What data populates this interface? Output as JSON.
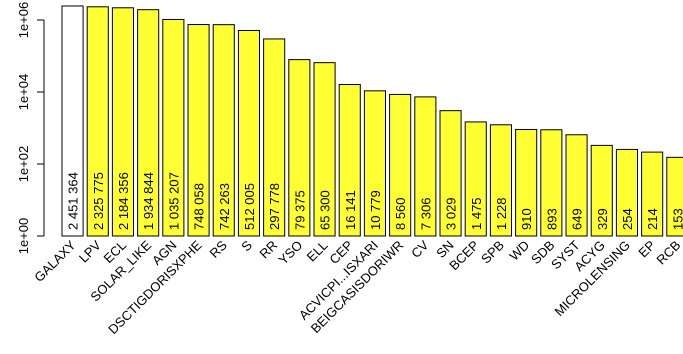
{
  "chart_data": {
    "type": "bar",
    "y_scale": "log",
    "ylim": [
      1,
      2451364
    ],
    "y_ticks": [
      {
        "value": 1,
        "label": "1e+00"
      },
      {
        "value": 100,
        "label": "1e+02"
      },
      {
        "value": 10000,
        "label": "1e+04"
      },
      {
        "value": 1000000,
        "label": "1e+06"
      }
    ],
    "colors": {
      "first_bar": "#ffffff",
      "bars": "#ffff33",
      "stroke": "#000000"
    },
    "categories": [
      "GALAXY",
      "LPV",
      "ECL",
      "SOLAR_LIKE",
      "AGN",
      "DSCT|GDOR|SXPHE",
      "RS",
      "S",
      "RR",
      "YSO",
      "ELL",
      "CEP",
      "ACV|CP|...|SXARI",
      "BE|GCAS|SDOR|WR",
      "CV",
      "SN",
      "BCEP",
      "SPB",
      "WD",
      "SDB",
      "SYST",
      "ACYG",
      "MICROLENSING",
      "EP",
      "RCB"
    ],
    "values": [
      2451364,
      2325775,
      2184356,
      1934844,
      1035207,
      748058,
      742263,
      512005,
      297778,
      79375,
      65300,
      16141,
      10779,
      8560,
      7306,
      3029,
      1475,
      1228,
      910,
      893,
      649,
      329,
      254,
      214,
      153
    ],
    "value_labels": [
      "2 451 364",
      "2 325 775",
      "2 184 356",
      "1 934 844",
      "1 035 207",
      "748 058",
      "742 263",
      "512 005",
      "297 778",
      "79 375",
      "65 300",
      "16 141",
      "10 779",
      "8 560",
      "7 306",
      "3 029",
      "1 475",
      "1 228",
      "910",
      "893",
      "649",
      "329",
      "254",
      "214",
      "153"
    ],
    "category_labels": [
      "GALAXY",
      "LPV",
      "ECL",
      "SOLAR_LIKE",
      "AGN",
      "DSCTIGDORISXPHE",
      "RS",
      "S",
      "RR",
      "YSO",
      "ELL",
      "CEP",
      "ACVICPI...ISXARI",
      "BEIGCASISDORIWR",
      "CV",
      "SN",
      "BCEP",
      "SPB",
      "WD",
      "SDB",
      "SYST",
      "ACYG",
      "MICROLENSING",
      "EP",
      "RCB"
    ]
  }
}
